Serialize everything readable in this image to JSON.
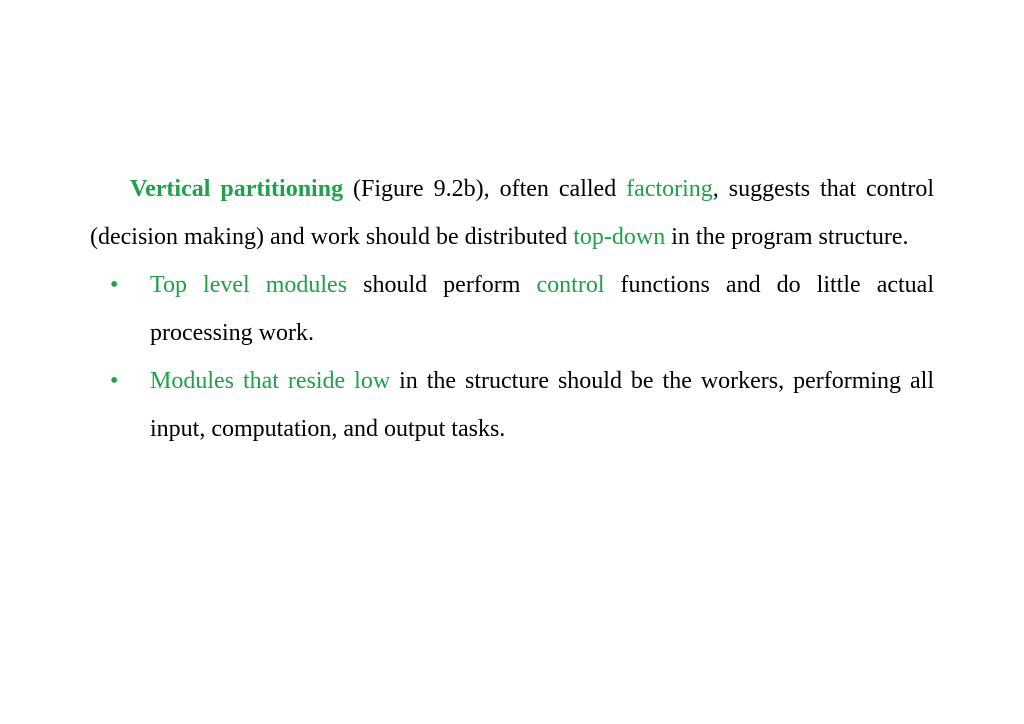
{
  "paragraph": {
    "term_bold": "Vertical partitioning",
    "seg1": " (Figure 9.2b), often called ",
    "term_factoring": "factoring",
    "seg2": ", suggests that control (decision making) and work should be distributed ",
    "term_topdown": "top-down",
    "seg3": " in the program structure."
  },
  "bullets": [
    {
      "lead_green": "Top level modules ",
      "t1": " should perform ",
      "mid_green": "control",
      "t2": " functions and do little actual processing  work."
    },
    {
      "lead_green": "Modules that reside low",
      "t1": " in the structure should be the workers, performing all input, computation, and output tasks.",
      "mid_green": "",
      "t2": ""
    }
  ],
  "colors": {
    "green": "#1ea04c",
    "black": "#000000",
    "background": "#ffffff"
  },
  "typography": {
    "font_family": "Times New Roman",
    "font_size_pt": 18
  }
}
